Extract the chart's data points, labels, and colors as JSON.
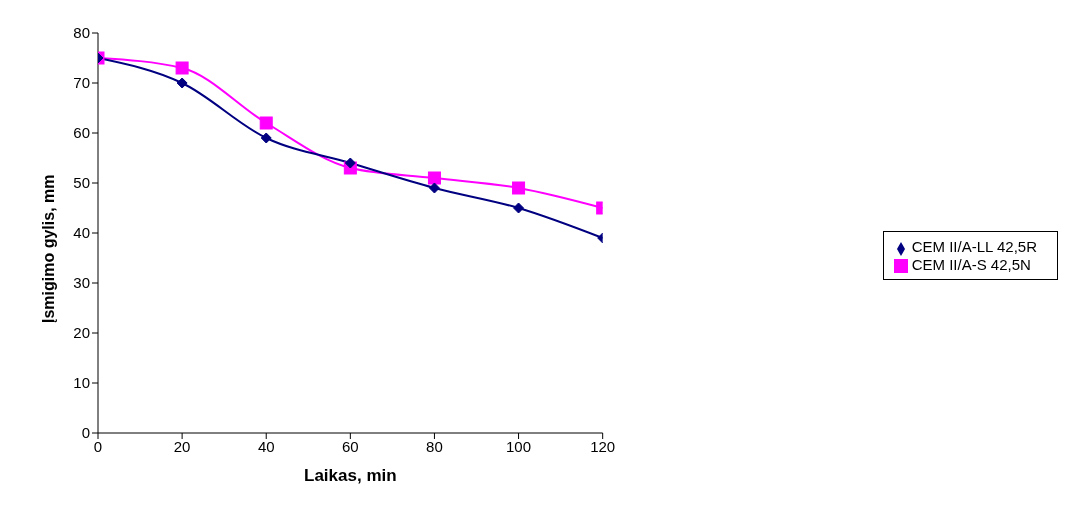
{
  "chart_data": {
    "type": "line",
    "xlabel": "Laikas, min",
    "ylabel": "Įsmigimo gylis, mm",
    "x": [
      0,
      20,
      40,
      60,
      80,
      100,
      120
    ],
    "series": [
      {
        "name": "CEM II/A-LL 42,5R",
        "color": "#000080",
        "marker": "diamond",
        "values": [
          75,
          70,
          59,
          54,
          49,
          45,
          39
        ]
      },
      {
        "name": "CEM II/A-S 42,5N",
        "color": "#ff00ff",
        "marker": "square",
        "values": [
          75,
          73,
          62,
          53,
          51,
          49,
          45
        ]
      }
    ],
    "xlim": [
      0,
      120
    ],
    "xticks": [
      0,
      20,
      40,
      60,
      80,
      100,
      120
    ],
    "ylim": [
      0,
      80
    ],
    "yticks": [
      0,
      10,
      20,
      30,
      40,
      50,
      60,
      70,
      80
    ],
    "grid": false,
    "legend": "right"
  }
}
